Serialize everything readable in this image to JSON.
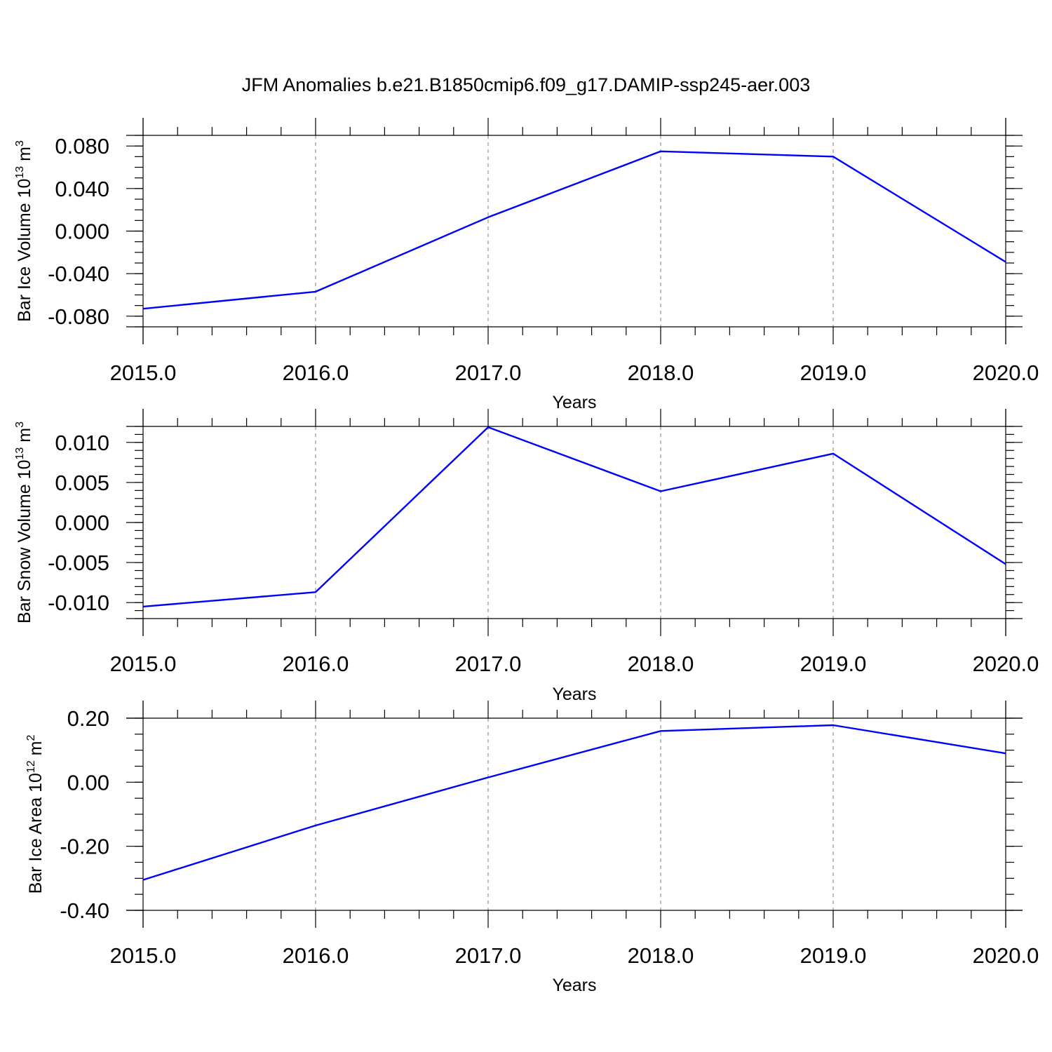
{
  "title": "JFM Anomalies b.e21.B1850cmip6.f09_g17.DAMIP-ssp245-aer.003",
  "series_color": "#0000ff",
  "chart_data": [
    {
      "type": "line",
      "xlabel": "Years",
      "ylabel": {
        "text": "Bar Ice Volume 10",
        "sup": "13",
        "unit": " m",
        "unit_sup": "3"
      },
      "xlim": [
        2015,
        2020
      ],
      "ylim": [
        -0.09,
        0.09
      ],
      "x_ticks": [
        "2015.0",
        "2016.0",
        "2017.0",
        "2018.0",
        "2019.0",
        "2020.0"
      ],
      "y_ticks": [
        -0.08,
        -0.04,
        0.0,
        0.04,
        0.08
      ],
      "y_tick_labels": [
        "-0.080",
        "-0.040",
        "0.000",
        "0.040",
        "0.080"
      ],
      "y_minor_step": 0.01,
      "grid": "vertical-dashed",
      "x": [
        2015,
        2016,
        2017,
        2018,
        2019,
        2020
      ],
      "values": [
        -0.073,
        -0.057,
        0.013,
        0.075,
        0.07,
        -0.029
      ]
    },
    {
      "type": "line",
      "xlabel": "Years",
      "ylabel": {
        "text": "Bar Snow Volume 10",
        "sup": "13",
        "unit": " m",
        "unit_sup": "3"
      },
      "xlim": [
        2015,
        2020
      ],
      "ylim": [
        -0.012,
        0.012
      ],
      "x_ticks": [
        "2015.0",
        "2016.0",
        "2017.0",
        "2018.0",
        "2019.0",
        "2020.0"
      ],
      "y_ticks": [
        -0.01,
        -0.005,
        0.0,
        0.005,
        0.01
      ],
      "y_tick_labels": [
        "-0.010",
        "-0.005",
        "0.000",
        "0.005",
        "0.010"
      ],
      "y_minor_step": 0.001,
      "grid": "vertical-dashed",
      "x": [
        2015,
        2016,
        2017,
        2018,
        2019,
        2020
      ],
      "values": [
        -0.0105,
        -0.0087,
        0.0119,
        0.0039,
        0.0086,
        -0.0052
      ]
    },
    {
      "type": "line",
      "xlabel": "Years",
      "ylabel": {
        "text": "Bar Ice Area 10",
        "sup": "12",
        "unit": " m",
        "unit_sup": "2"
      },
      "xlim": [
        2015,
        2020
      ],
      "ylim": [
        -0.4,
        0.2
      ],
      "x_ticks": [
        "2015.0",
        "2016.0",
        "2017.0",
        "2018.0",
        "2019.0",
        "2020.0"
      ],
      "y_ticks": [
        -0.4,
        -0.2,
        0.0,
        0.2
      ],
      "y_tick_labels": [
        "-0.40",
        "-0.20",
        "0.00",
        "0.20"
      ],
      "y_minor_step": 0.05,
      "grid": "vertical-dashed",
      "x": [
        2015,
        2016,
        2017,
        2018,
        2019,
        2020
      ],
      "values": [
        -0.305,
        -0.135,
        0.015,
        0.16,
        0.178,
        0.09
      ]
    }
  ]
}
